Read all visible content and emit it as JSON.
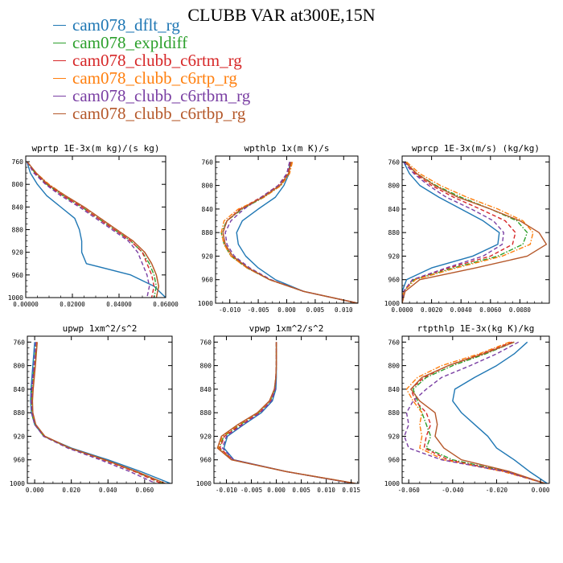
{
  "figure": {
    "title": "CLUBB VAR at300E,15N",
    "legend": [
      {
        "label": "cam078_dflt_rg",
        "color": "#1f77b4",
        "dash": "solid"
      },
      {
        "label": "cam078_expldiff",
        "color": "#2ca02c",
        "dash": "dashdot"
      },
      {
        "label": "cam078_clubb_c6rtm_rg",
        "color": "#d62728",
        "dash": "dash"
      },
      {
        "label": "cam078_clubb_c6rtp_rg",
        "color": "#ff7f0e",
        "dash": "dashdot"
      },
      {
        "label": "cam078_clubb_c6rtbm_rg",
        "color": "#7a3fa3",
        "dash": "dash"
      },
      {
        "label": "cam078_clubb_c6rtbp_rg",
        "color": "#b5582a",
        "dash": "solid"
      }
    ]
  },
  "chart_data": [
    {
      "type": "line",
      "title": "wprtp  1E-3x(m kg)/(s kg)",
      "xlim": [
        0,
        0.06
      ],
      "ylim": [
        1000,
        750
      ],
      "x_ticks": [
        0,
        0.02,
        0.04,
        0.06
      ],
      "x_tick_labels": [
        "0.00000",
        "0.02000",
        "0.04000",
        "0.06000"
      ],
      "y_ticks": [
        760,
        800,
        840,
        880,
        920,
        960,
        1000
      ],
      "y_tick_labels": [
        "760",
        "800",
        "840",
        "880",
        "920",
        "960",
        "1000"
      ],
      "levels": [
        760,
        780,
        800,
        820,
        840,
        860,
        880,
        900,
        920,
        940,
        960,
        980,
        1000
      ],
      "series": [
        {
          "name": "cam078_dflt_rg",
          "values": [
            0.0005,
            0.002,
            0.005,
            0.009,
            0.015,
            0.021,
            0.023,
            0.024,
            0.024,
            0.026,
            0.045,
            0.055,
            0.06
          ]
        },
        {
          "name": "cam078_expldiff",
          "values": [
            0.0005,
            0.004,
            0.009,
            0.016,
            0.024,
            0.031,
            0.038,
            0.045,
            0.05,
            0.053,
            0.055,
            0.056,
            0.055
          ]
        },
        {
          "name": "cam078_clubb_c6rtm_rg",
          "values": [
            0.0005,
            0.004,
            0.009,
            0.016,
            0.024,
            0.031,
            0.038,
            0.045,
            0.05,
            0.052,
            0.054,
            0.055,
            0.054
          ]
        },
        {
          "name": "cam078_clubb_c6rtp_rg",
          "values": [
            0.0006,
            0.0045,
            0.01,
            0.017,
            0.025,
            0.032,
            0.039,
            0.046,
            0.051,
            0.054,
            0.056,
            0.057,
            0.056
          ]
        },
        {
          "name": "cam078_clubb_c6rtbm_rg",
          "values": [
            0.0005,
            0.0035,
            0.0085,
            0.015,
            0.023,
            0.03,
            0.037,
            0.044,
            0.048,
            0.05,
            0.052,
            0.053,
            0.052
          ]
        },
        {
          "name": "cam078_clubb_c6rtbp_rg",
          "values": [
            0.0006,
            0.0045,
            0.0095,
            0.017,
            0.025,
            0.032,
            0.039,
            0.046,
            0.051,
            0.054,
            0.056,
            0.057,
            0.056
          ]
        }
      ]
    },
    {
      "type": "line",
      "title": "wpthlp  1x(m K)/s",
      "xlim": [
        -0.0125,
        0.0125
      ],
      "ylim": [
        1000,
        750
      ],
      "x_ticks": [
        -0.01,
        -0.005,
        0,
        0.005,
        0.01
      ],
      "x_tick_labels": [
        "-0.010",
        "-0.005",
        "0.000",
        "0.005",
        "0.010"
      ],
      "y_ticks": [
        760,
        800,
        840,
        880,
        920,
        960,
        1000
      ],
      "y_tick_labels": [
        "760",
        "800",
        "840",
        "880",
        "920",
        "960",
        "1000"
      ],
      "levels": [
        760,
        780,
        800,
        820,
        840,
        860,
        880,
        900,
        920,
        940,
        960,
        980,
        1000
      ],
      "series": [
        {
          "name": "cam078_dflt_rg",
          "values": [
            0.0005,
            0.0004,
            -0.0005,
            -0.002,
            -0.005,
            -0.0078,
            -0.0088,
            -0.0085,
            -0.0072,
            -0.005,
            -0.002,
            0.003,
            0.0125
          ]
        },
        {
          "name": "cam078_expldiff",
          "values": [
            0.0008,
            0.0004,
            -0.001,
            -0.004,
            -0.0078,
            -0.0105,
            -0.0115,
            -0.011,
            -0.0098,
            -0.007,
            -0.003,
            0.003,
            0.0125
          ]
        },
        {
          "name": "cam078_clubb_c6rtm_rg",
          "values": [
            0.0007,
            0.0002,
            -0.0015,
            -0.0045,
            -0.0082,
            -0.0105,
            -0.0112,
            -0.0108,
            -0.0095,
            -0.0068,
            -0.003,
            0.003,
            0.0125
          ]
        },
        {
          "name": "cam078_clubb_c6rtp_rg",
          "values": [
            0.001,
            0.0005,
            -0.001,
            -0.004,
            -0.0085,
            -0.011,
            -0.0115,
            -0.011,
            -0.0098,
            -0.007,
            -0.003,
            0.003,
            0.0125
          ]
        },
        {
          "name": "cam078_clubb_c6rtbm_rg",
          "values": [
            0.0005,
            0.0,
            -0.0015,
            -0.0045,
            -0.0075,
            -0.0098,
            -0.0108,
            -0.0105,
            -0.0092,
            -0.0065,
            -0.0028,
            0.003,
            0.0125
          ]
        },
        {
          "name": "cam078_clubb_c6rtbp_rg",
          "values": [
            0.0008,
            0.0003,
            -0.0012,
            -0.0042,
            -0.008,
            -0.0105,
            -0.0112,
            -0.0108,
            -0.0095,
            -0.0068,
            -0.003,
            0.003,
            0.0125
          ]
        }
      ]
    },
    {
      "type": "line",
      "title": "wprcp  1E-3x(m/s) (kg/kg)",
      "xlim": [
        0,
        0.01
      ],
      "ylim": [
        1000,
        750
      ],
      "x_ticks": [
        0,
        0.002,
        0.004,
        0.006,
        0.008
      ],
      "x_tick_labels": [
        "0.0000",
        "0.0020",
        "0.0040",
        "0.0060",
        "0.0080"
      ],
      "y_ticks": [
        760,
        800,
        840,
        880,
        920,
        960,
        1000
      ],
      "y_tick_labels": [
        "760",
        "800",
        "840",
        "880",
        "920",
        "960",
        "1000"
      ],
      "levels": [
        760,
        780,
        800,
        820,
        840,
        860,
        880,
        900,
        920,
        940,
        960,
        980,
        1000
      ],
      "series": [
        {
          "name": "cam078_dflt_rg",
          "values": [
            0.0001,
            0.0005,
            0.0012,
            0.0025,
            0.004,
            0.0055,
            0.0066,
            0.0065,
            0.0048,
            0.002,
            0.0003,
            0.0,
            0.0
          ]
        },
        {
          "name": "cam078_expldiff",
          "values": [
            0.0002,
            0.001,
            0.0023,
            0.004,
            0.006,
            0.0078,
            0.0085,
            0.0082,
            0.0065,
            0.0035,
            0.0008,
            0.0001,
            0.0
          ]
        },
        {
          "name": "cam078_clubb_c6rtm_rg",
          "values": [
            0.0002,
            0.0009,
            0.002,
            0.0035,
            0.0053,
            0.007,
            0.0077,
            0.0075,
            0.006,
            0.0032,
            0.0007,
            0.0001,
            0.0
          ]
        },
        {
          "name": "cam078_clubb_c6rtp_rg",
          "values": [
            0.0003,
            0.0012,
            0.0026,
            0.0044,
            0.0065,
            0.0082,
            0.0089,
            0.0087,
            0.0068,
            0.0037,
            0.0009,
            0.0001,
            0.0
          ]
        },
        {
          "name": "cam078_clubb_c6rtbm_rg",
          "values": [
            0.0001,
            0.0008,
            0.0018,
            0.003,
            0.0047,
            0.0062,
            0.0069,
            0.0068,
            0.0055,
            0.003,
            0.0007,
            0.0001,
            0.0
          ]
        },
        {
          "name": "cam078_clubb_c6rtbp_rg",
          "values": [
            0.0002,
            0.001,
            0.0022,
            0.0038,
            0.006,
            0.008,
            0.0093,
            0.0098,
            0.0085,
            0.005,
            0.0012,
            0.0002,
            0.0
          ]
        }
      ]
    },
    {
      "type": "line",
      "title": "upwp  1xm^2/s^2",
      "xlim": [
        -0.004,
        0.075
      ],
      "ylim": [
        1000,
        750
      ],
      "x_ticks": [
        0,
        0.02,
        0.04,
        0.06
      ],
      "x_tick_labels": [
        "0.000",
        "0.020",
        "0.040",
        "0.060"
      ],
      "y_ticks": [
        760,
        800,
        840,
        880,
        920,
        960,
        1000
      ],
      "y_tick_labels": [
        "760",
        "800",
        "840",
        "880",
        "920",
        "960",
        "1000"
      ],
      "levels": [
        760,
        780,
        800,
        820,
        840,
        860,
        880,
        900,
        920,
        940,
        960,
        980,
        1000
      ],
      "series": [
        {
          "name": "cam078_dflt_rg",
          "values": [
            0.0,
            -0.0005,
            -0.001,
            -0.0015,
            -0.002,
            -0.0022,
            -0.0018,
            0.0,
            0.005,
            0.02,
            0.04,
            0.058,
            0.074
          ]
        },
        {
          "name": "cam078_expldiff",
          "values": [
            0.0008,
            0.0003,
            -0.0003,
            -0.0008,
            -0.0015,
            -0.0018,
            -0.0016,
            0.0,
            0.005,
            0.019,
            0.038,
            0.055,
            0.07
          ]
        },
        {
          "name": "cam078_clubb_c6rtm_rg",
          "values": [
            0.001,
            0.0005,
            0.0,
            -0.0006,
            -0.0012,
            -0.0016,
            -0.0014,
            0.0002,
            0.0052,
            0.0188,
            0.0375,
            0.0545,
            0.069
          ]
        },
        {
          "name": "cam078_clubb_c6rtp_rg",
          "values": [
            0.0012,
            0.0007,
            0.0002,
            -0.0004,
            -0.001,
            -0.0014,
            -0.0012,
            0.0004,
            0.0055,
            0.0192,
            0.0382,
            0.0556,
            0.071
          ]
        },
        {
          "name": "cam078_clubb_c6rtbm_rg",
          "values": [
            0.0006,
            0.0002,
            -0.0004,
            -0.001,
            -0.0016,
            -0.0019,
            -0.0016,
            0.0,
            0.0048,
            0.018,
            0.0358,
            0.052,
            0.066
          ]
        },
        {
          "name": "cam078_clubb_c6rtbp_rg",
          "values": [
            0.0014,
            0.0009,
            0.0004,
            -0.0002,
            -0.0008,
            -0.0012,
            -0.001,
            0.0006,
            0.0056,
            0.0193,
            0.0385,
            0.0558,
            0.0712
          ]
        }
      ]
    },
    {
      "type": "line",
      "title": "vpwp  1xm^2/s^2",
      "xlim": [
        -0.0125,
        0.0165
      ],
      "ylim": [
        1000,
        750
      ],
      "x_ticks": [
        -0.01,
        -0.005,
        0,
        0.005,
        0.01,
        0.015
      ],
      "x_tick_labels": [
        "-0.010",
        "-0.005",
        "0.000",
        "0.005",
        "0.010",
        "0.015"
      ],
      "y_ticks": [
        760,
        800,
        840,
        880,
        920,
        960,
        1000
      ],
      "y_tick_labels": [
        "760",
        "800",
        "840",
        "880",
        "920",
        "960",
        "1000"
      ],
      "levels": [
        760,
        780,
        800,
        820,
        840,
        860,
        880,
        900,
        920,
        940,
        960,
        980,
        1000
      ],
      "series": [
        {
          "name": "cam078_dflt_rg",
          "values": [
            0.0,
            0.0,
            0.0,
            0.0,
            -0.0001,
            -0.0008,
            -0.003,
            -0.0065,
            -0.0098,
            -0.0105,
            -0.0085,
            0.002,
            0.0155
          ]
        },
        {
          "name": "cam078_expldiff",
          "values": [
            0.0,
            0.0,
            0.0,
            -0.0001,
            -0.0003,
            -0.0012,
            -0.0035,
            -0.0072,
            -0.0105,
            -0.0115,
            -0.0088,
            0.002,
            0.0157
          ]
        },
        {
          "name": "cam078_clubb_c6rtm_rg",
          "values": [
            0.0,
            0.0,
            0.0,
            -0.0001,
            -0.0003,
            -0.0011,
            -0.0034,
            -0.007,
            -0.0104,
            -0.0113,
            -0.0087,
            0.002,
            0.0156
          ]
        },
        {
          "name": "cam078_clubb_c6rtp_rg",
          "values": [
            0.0,
            0.0,
            0.0,
            -0.0001,
            -0.0004,
            -0.0013,
            -0.0037,
            -0.0075,
            -0.0108,
            -0.0116,
            -0.0089,
            0.002,
            0.0158
          ]
        },
        {
          "name": "cam078_clubb_c6rtbm_rg",
          "values": [
            0.0,
            0.0,
            0.0,
            -0.0001,
            -0.0002,
            -0.001,
            -0.0032,
            -0.0067,
            -0.01,
            -0.0108,
            -0.0086,
            0.002,
            0.0155
          ]
        },
        {
          "name": "cam078_clubb_c6rtbp_rg",
          "values": [
            0.0,
            0.0,
            0.0,
            -0.0001,
            -0.0004,
            -0.0014,
            -0.0038,
            -0.0077,
            -0.011,
            -0.0118,
            -0.009,
            0.002,
            0.0158
          ]
        }
      ]
    },
    {
      "type": "line",
      "title": "rtpthlp  1E-3x(kg K)/kg",
      "xlim": [
        -0.063,
        0.004
      ],
      "ylim": [
        1000,
        750
      ],
      "x_ticks": [
        -0.06,
        -0.04,
        -0.02,
        0.0
      ],
      "x_tick_labels": [
        "-0.060",
        "-0.040",
        "-0.020",
        "0.000"
      ],
      "y_ticks": [
        760,
        800,
        840,
        880,
        920,
        960,
        1000
      ],
      "y_tick_labels": [
        "760",
        "800",
        "840",
        "880",
        "920",
        "960",
        "1000"
      ],
      "levels": [
        760,
        780,
        800,
        820,
        840,
        860,
        880,
        900,
        920,
        940,
        960,
        980,
        1000
      ],
      "series": [
        {
          "name": "cam078_dflt_rg",
          "values": [
            -0.006,
            -0.012,
            -0.02,
            -0.03,
            -0.039,
            -0.04,
            -0.036,
            -0.03,
            -0.024,
            -0.02,
            -0.012,
            -0.005,
            0.003
          ]
        },
        {
          "name": "cam078_expldiff",
          "values": [
            -0.012,
            -0.025,
            -0.04,
            -0.052,
            -0.058,
            -0.056,
            -0.054,
            -0.052,
            -0.05,
            -0.052,
            -0.04,
            -0.015,
            0.002
          ]
        },
        {
          "name": "cam078_clubb_c6rtm_rg",
          "values": [
            -0.013,
            -0.027,
            -0.042,
            -0.053,
            -0.059,
            -0.057,
            -0.052,
            -0.05,
            -0.052,
            -0.053,
            -0.042,
            -0.016,
            0.002
          ]
        },
        {
          "name": "cam078_clubb_c6rtp_rg",
          "values": [
            -0.014,
            -0.028,
            -0.045,
            -0.056,
            -0.061,
            -0.058,
            -0.054,
            -0.055,
            -0.054,
            -0.055,
            -0.044,
            -0.017,
            0.002
          ]
        },
        {
          "name": "cam078_clubb_c6rtbm_rg",
          "values": [
            -0.01,
            -0.02,
            -0.032,
            -0.045,
            -0.052,
            -0.058,
            -0.061,
            -0.06,
            -0.062,
            -0.06,
            -0.045,
            -0.016,
            0.002
          ]
        },
        {
          "name": "cam078_clubb_c6rtbp_rg",
          "values": [
            -0.012,
            -0.026,
            -0.042,
            -0.054,
            -0.059,
            -0.055,
            -0.048,
            -0.047,
            -0.048,
            -0.044,
            -0.036,
            -0.014,
            0.002
          ]
        }
      ]
    }
  ]
}
